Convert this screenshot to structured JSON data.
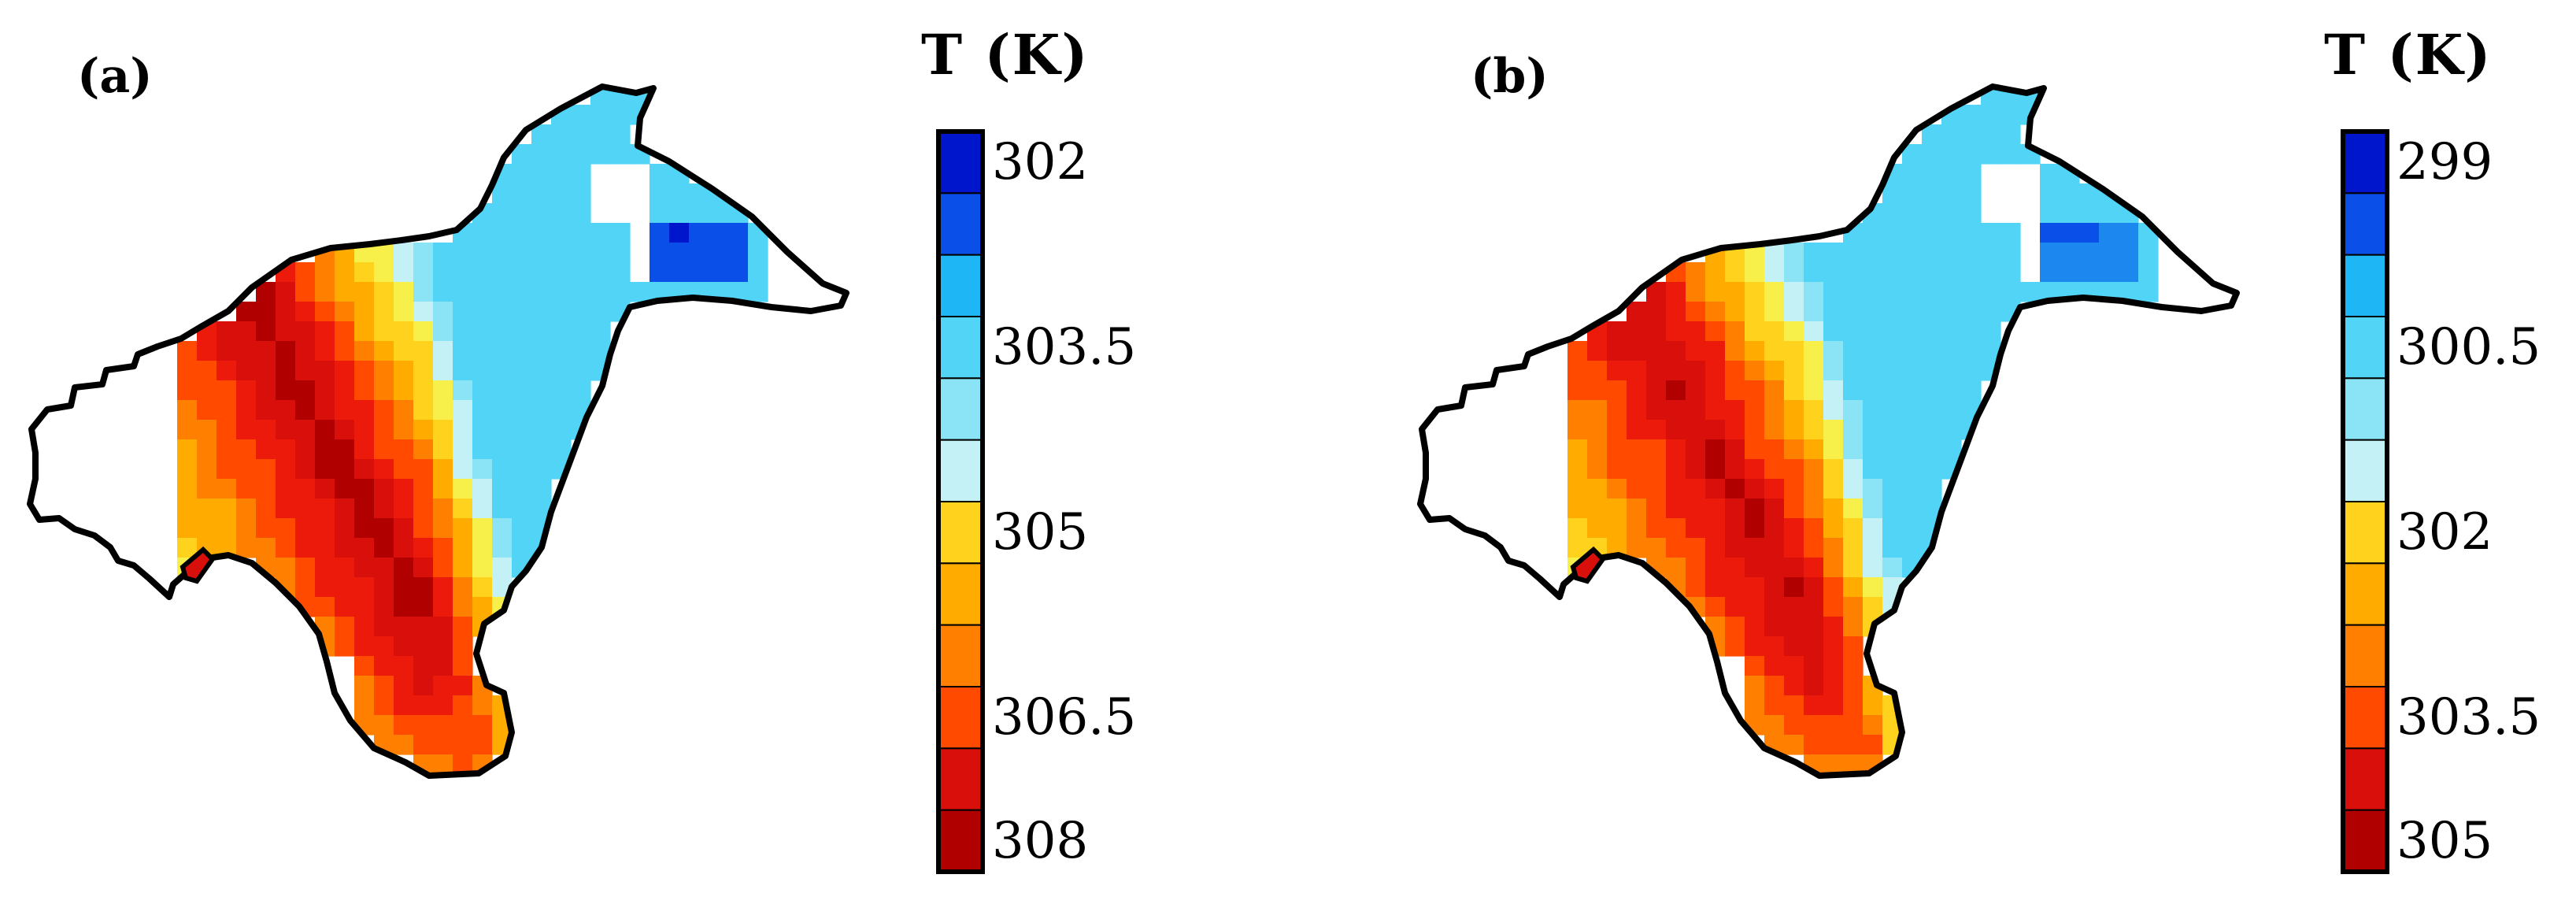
{
  "chart_data": [
    {
      "type": "heatmap",
      "panel_label": "(a)",
      "colorbar_title": "T  (K)",
      "colorbar_range": [
        302,
        308
      ],
      "colorbar_ticks": [
        "302",
        "303.5",
        "305",
        "306.5",
        "308"
      ],
      "colorbar_levels": 12,
      "colors": [
        "#0016cc",
        "#0a4fe8",
        "#1c87ef",
        "#1fb6f5",
        "#52d4f7",
        "#8ae4f6",
        "#c4f1f5",
        "#f7f04a",
        "#ffd21e",
        "#ffab00",
        "#ff8000",
        "#ff4a00",
        "#ec1a0a",
        "#d80f0a",
        "#b00000"
      ],
      "warm_center": [
        0.3,
        0.4
      ],
      "warm_axis_angle_deg": 62,
      "grid": false,
      "legend": "right"
    },
    {
      "type": "heatmap",
      "panel_label": "(b)",
      "colorbar_title": "T  (K)",
      "colorbar_range": [
        299,
        305
      ],
      "colorbar_ticks": [
        "299",
        "300.5",
        "302",
        "303.5",
        "305"
      ],
      "colorbar_levels": 12,
      "colors": [
        "#0016cc",
        "#0a4fe8",
        "#1c87ef",
        "#1fb6f5",
        "#52d4f7",
        "#8ae4f6",
        "#c4f1f5",
        "#f7f04a",
        "#ffd21e",
        "#ffab00",
        "#ff8000",
        "#ff4a00",
        "#ec1a0a",
        "#d80f0a",
        "#b00000"
      ],
      "warm_center": [
        0.28,
        0.38
      ],
      "warm_axis_angle_deg": 62,
      "grid": false,
      "legend": "right"
    }
  ]
}
